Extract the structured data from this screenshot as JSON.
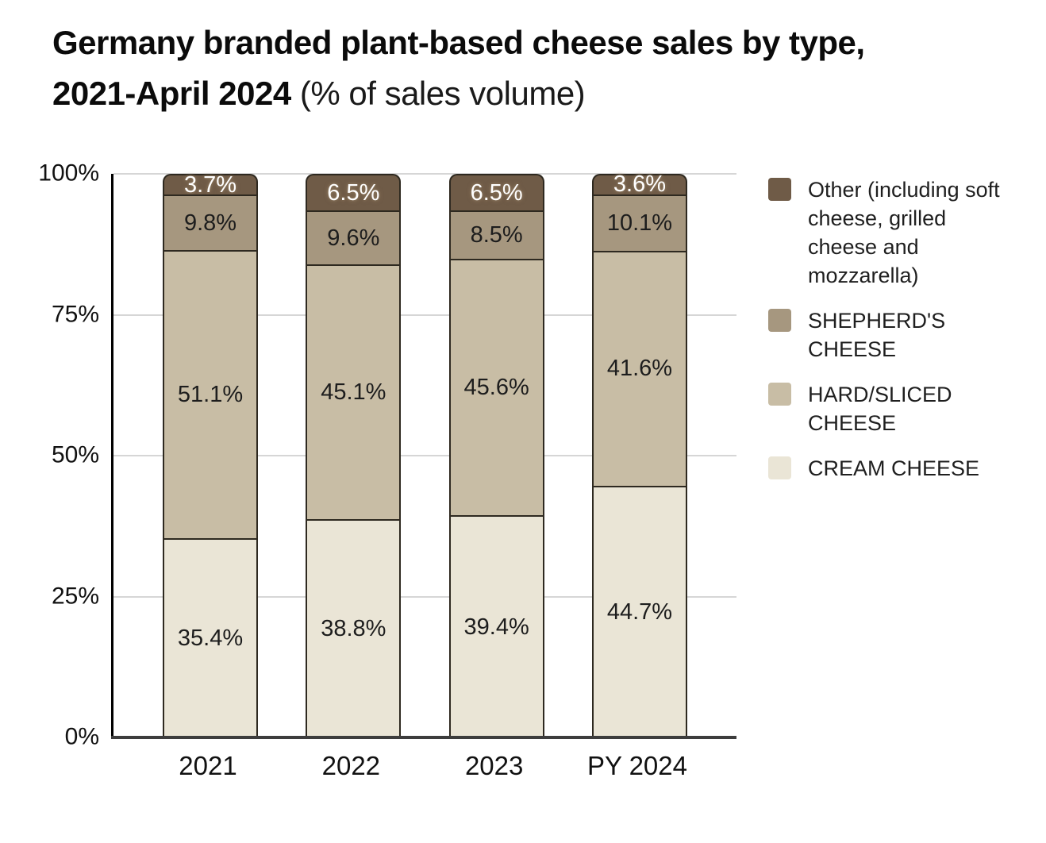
{
  "title": {
    "line1": "Germany branded plant-based cheese sales by type,",
    "line2_bold": "2021-April 2024",
    "line2_normal": " (% of sales volume)"
  },
  "chart_data": {
    "type": "bar",
    "stacked": true,
    "title": "Germany branded plant-based cheese sales by type, 2021-April 2024 (% of sales volume)",
    "categories": [
      "2021",
      "2022",
      "2023",
      "PY 2024"
    ],
    "series": [
      {
        "key": "cream-cheese",
        "name": "CREAM CHEESE",
        "color": "#eae5d6",
        "label_color": "#1d1d1d",
        "values": [
          35.4,
          38.8,
          39.4,
          44.7
        ]
      },
      {
        "key": "hard-sliced-cheese",
        "name": "HARD/SLICED CHEESE",
        "color": "#c8bda5",
        "label_color": "#1d1d1d",
        "values": [
          51.1,
          45.1,
          45.6,
          41.6
        ]
      },
      {
        "key": "shepherds-cheese",
        "name": "SHEPHERD'S CHEESE",
        "color": "#a6977f",
        "label_color": "#1d1d1d",
        "values": [
          9.8,
          9.6,
          8.5,
          10.1
        ]
      },
      {
        "key": "other",
        "name": "Other (including soft cheese, grilled cheese and mozzarella)",
        "color": "#6f5b47",
        "label_color": "#ffffff",
        "values": [
          3.7,
          6.5,
          6.5,
          3.6
        ]
      }
    ],
    "yticks": [
      "100%",
      "75%",
      "50%",
      "25%",
      "0%"
    ],
    "ylim": [
      0,
      100
    ],
    "unit": "%",
    "grid": true,
    "legend_position": "right",
    "legend_order": [
      "other",
      "shepherds-cheese",
      "hard-sliced-cheese",
      "cream-cheese"
    ],
    "colors": {
      "gridline": "#d6d6d6",
      "y_axis": "#000000",
      "x_axis": "#3d3d3d",
      "segment_border": "#2e2920"
    }
  }
}
